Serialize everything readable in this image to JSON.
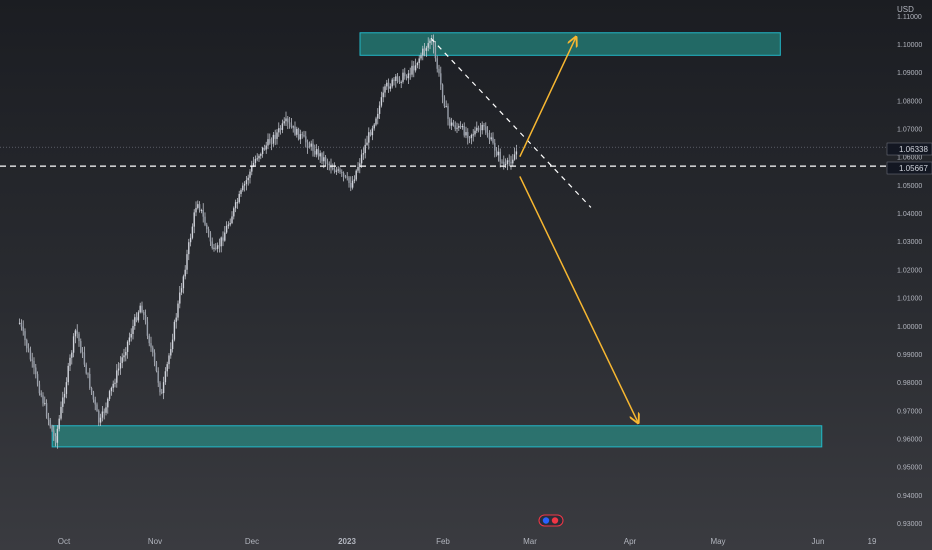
{
  "chart_data": {
    "type": "candlestick",
    "currency_label": "USD",
    "x_labels": [
      "Oct",
      "Nov",
      "Dec",
      "2023",
      "Feb",
      "Mar",
      "Apr",
      "May",
      "Jun",
      "19"
    ],
    "y_ticks": [
      "1.11000",
      "1.10000",
      "1.09000",
      "1.08000",
      "1.07000",
      "1.06000",
      "1.05000",
      "1.04000",
      "1.03000",
      "1.02000",
      "1.01000",
      "1.00000",
      "0.99000",
      "0.98000",
      "0.97000",
      "0.96000",
      "0.95000",
      "0.94000",
      "0.93000"
    ],
    "y_range": [
      0.9275,
      1.1135
    ],
    "price_labels": {
      "last": "1.06338",
      "level": "1.05667"
    },
    "key_points": [
      {
        "date": "2022-09-16",
        "price": 1.001
      },
      {
        "date": "2022-09-28",
        "price": 0.959
      },
      {
        "date": "2022-10-05",
        "price": 0.999
      },
      {
        "date": "2022-10-13",
        "price": 0.965
      },
      {
        "date": "2022-10-27",
        "price": 1.008
      },
      {
        "date": "2022-11-03",
        "price": 0.975
      },
      {
        "date": "2022-11-15",
        "price": 1.045
      },
      {
        "date": "2022-11-21",
        "price": 1.025
      },
      {
        "date": "2022-12-05",
        "price": 1.06
      },
      {
        "date": "2022-12-15",
        "price": 1.072
      },
      {
        "date": "2023-01-06",
        "price": 1.05
      },
      {
        "date": "2023-01-18",
        "price": 1.085
      },
      {
        "date": "2023-01-26",
        "price": 1.09
      },
      {
        "date": "2023-02-02",
        "price": 1.102
      },
      {
        "date": "2023-02-08",
        "price": 1.072
      },
      {
        "date": "2023-02-15",
        "price": 1.068
      },
      {
        "date": "2023-02-20",
        "price": 1.07
      },
      {
        "date": "2023-02-27",
        "price": 1.056
      },
      {
        "date": "2023-03-03",
        "price": 1.062
      }
    ],
    "zones": [
      {
        "from": "2023-01-09",
        "to": "2023-05-31",
        "low": 1.096,
        "high": 1.104
      },
      {
        "from": "2022-09-27",
        "to": "2023-06-14",
        "low": 0.957,
        "high": 0.9645
      }
    ],
    "lines": {
      "support_level": 1.05667,
      "trendline": {
        "from": {
          "date": "2023-02-02",
          "price": 1.102
        },
        "to": {
          "date": "2023-03-28",
          "price": 1.042
        }
      },
      "arrow_up": {
        "from": {
          "date": "2023-03-04",
          "price": 1.06
        },
        "to": {
          "date": "2023-03-23",
          "price": 1.1025
        }
      },
      "arrow_down": {
        "from": {
          "date": "2023-03-04",
          "price": 1.053
        },
        "to": {
          "date": "2023-04-13",
          "price": 0.9655
        }
      }
    },
    "grid": false,
    "colors": {
      "candle": "#d1d4dc",
      "zone_fill": "#26a69a",
      "zone_border": "#22b8c8",
      "arrow": "#f7b731",
      "dashed": "#ffffff",
      "text": "#b2b5be"
    }
  }
}
